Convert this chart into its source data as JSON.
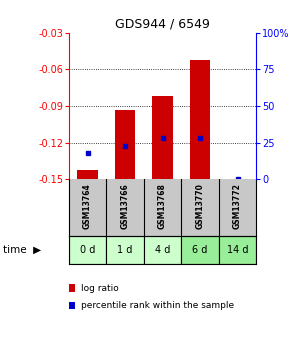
{
  "title": "GDS944 / 6549",
  "samples": [
    "GSM13764",
    "GSM13766",
    "GSM13768",
    "GSM13770",
    "GSM13772"
  ],
  "time_labels": [
    "0 d",
    "1 d",
    "4 d",
    "6 d",
    "14 d"
  ],
  "log_ratios": [
    -0.142,
    -0.093,
    -0.082,
    -0.052,
    -0.152
  ],
  "percentile_ranks": [
    18,
    23,
    28,
    28,
    0
  ],
  "ylim_left": [
    -0.15,
    -0.03
  ],
  "ylim_right": [
    0,
    100
  ],
  "yticks_left": [
    -0.15,
    -0.12,
    -0.09,
    -0.06,
    -0.03
  ],
  "yticks_right": [
    0,
    25,
    50,
    75,
    100
  ],
  "bar_color": "#cc0000",
  "dot_color": "#0000cc",
  "bar_bottom": -0.15,
  "background_color": "#ffffff",
  "gsm_bg": "#c8c8c8",
  "time_bg_colors": [
    "#ccffcc",
    "#ccffcc",
    "#ccffcc",
    "#99ee99",
    "#99ee99"
  ],
  "legend_bar_label": "log ratio",
  "legend_dot_label": "percentile rank within the sample"
}
